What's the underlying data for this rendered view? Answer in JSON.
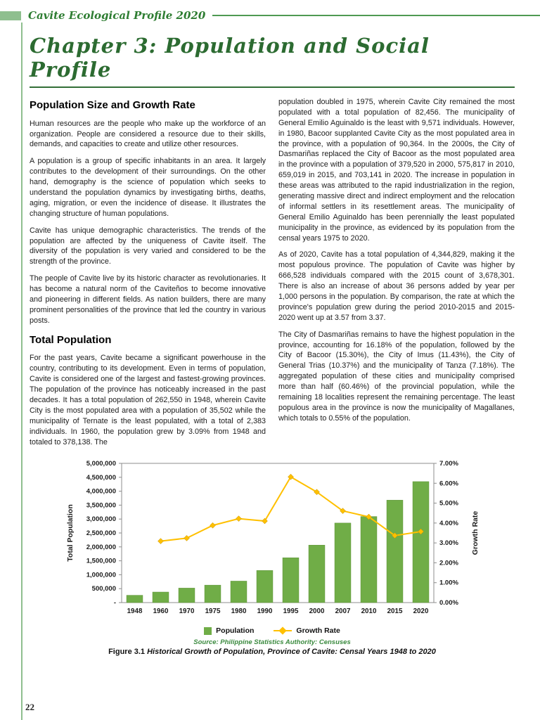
{
  "page": {
    "header_title": "Cavite Ecological Profile 2020",
    "chapter_title": "Chapter 3: Population and Social Profile",
    "page_number": "22"
  },
  "left_column": {
    "heading1": "Population Size and Growth Rate",
    "paras": [
      "Human resources are the people who make up the workforce of an organization. People are considered a resource due to their skills, demands, and capacities to create and utilize other resources.",
      "A population is a group of specific inhabitants in an area. It largely contributes to the development of their surroundings. On the other hand, demography is the science of population which seeks to understand the population dynamics by investigating births, deaths, aging, migration, or even the incidence of disease. It illustrates the changing structure of human populations.",
      "Cavite has unique demographic characteristics. The trends of the population are affected by the uniqueness of Cavite itself. The diversity of the population is very varied and considered to be the strength of the province.",
      "The people of Cavite live by its historic character as revolutionaries. It has become a natural norm of the Caviteños to become innovative and pioneering in different fields. As nation builders, there are many prominent personalities of the province that led the country in various posts."
    ],
    "heading2": "Total Population",
    "paras2": [
      "For the past years, Cavite became a significant powerhouse in the country, contributing to its development.  Even in terms of population, Cavite is considered one of the largest and fastest-growing provinces. The population of the province has noticeably increased in the past decades. It has a total population of 262,550 in 1948, wherein Cavite City is the most populated area with a population of 35,502 while the municipality of Ternate is the least populated, with a total of 2,383 individuals. In 1960, the population grew by 3.09% from 1948 and totaled to 378,138. The"
    ]
  },
  "right_column": {
    "paras": [
      "population doubled in 1975, wherein Cavite City remained the most populated with a total population of 82,456. The municipality of General Emilio Aguinaldo is the least with 9,571 individuals. However, in 1980, Bacoor supplanted Cavite City as the most populated area in the province, with a population of 90,364. In the 2000s, the City of Dasmariñas replaced the City of Bacoor as the most populated area in the province with a population of 379,520 in 2000, 575,817 in 2010, 659,019 in 2015, and 703,141 in 2020. The increase in population in these areas was attributed to the rapid industrialization in the region, generating massive direct and indirect employment and the relocation of informal settlers in its resettlement areas. The municipality of General Emilio Aguinaldo has been perennially the least populated municipality in the province, as evidenced by its population from the censal years 1975 to 2020.",
      "As of 2020, Cavite has a total population of 4,344,829, making it the most populous province. The population of Cavite was higher by 666,528 individuals compared with the 2015 count of 3,678,301. There is also an increase of about 36 persons added by year per 1,000 persons in the population. By comparison, the rate at which the province's population grew during the period 2010-2015 and 2015-2020 went up at 3.57 from 3.37.",
      "The City of Dasmariñas remains to have the highest population in the province, accounting for 16.18% of the population, followed by the City of Bacoor (15.30%), the City of Imus (11.43%), the City of General Trias (10.37%) and the municipality of Tanza (7.18%). The aggregated population of these cities and municipality comprised more than half (60.46%) of the provincial population, while the remaining 18 localities represent the remaining percentage. The least populous area in the province is now the municipality of Magallanes, which totals to 0.55% of the population."
    ]
  },
  "figure": {
    "source": "Source: Philippine Statistics Authority: Censuses",
    "caption_label": "Figure 3.1",
    "caption_title": "Historical Growth of Population, Province of Cavite: Censal Years 1948 to 2020"
  },
  "chart_data": {
    "type": "bar",
    "subtype": "bar-line-combo",
    "categories": [
      "1948",
      "1960",
      "1970",
      "1975",
      "1980",
      "1990",
      "1995",
      "2000",
      "2007",
      "2010",
      "2015",
      "2020"
    ],
    "series": [
      {
        "name": "Population",
        "type": "bar",
        "axis": "left",
        "color": "#70AD47",
        "values": [
          262550,
          378138,
          520180,
          627130,
          771320,
          1152534,
          1610324,
          2063161,
          2856765,
          3090691,
          3678301,
          4344829
        ]
      },
      {
        "name": "Growth Rate",
        "type": "line",
        "axis": "right",
        "color": "#FFC000",
        "values": [
          null,
          3.09,
          3.24,
          3.88,
          4.22,
          4.1,
          6.32,
          5.56,
          4.61,
          4.31,
          3.37,
          3.57
        ]
      }
    ],
    "left_axis": {
      "title": "Total Population",
      "min": 0,
      "max": 5000000,
      "step": 500000,
      "zero_label": "-"
    },
    "right_axis": {
      "title": "Growth Rate",
      "min": 0,
      "max": 7,
      "step": 1,
      "format": "percent"
    },
    "legend_position": "bottom",
    "grid": false,
    "legend": [
      {
        "label": "Population",
        "marker": "square",
        "color": "#70AD47"
      },
      {
        "label": "Growth Rate",
        "marker": "diamond-line",
        "color": "#FFC000"
      }
    ]
  }
}
